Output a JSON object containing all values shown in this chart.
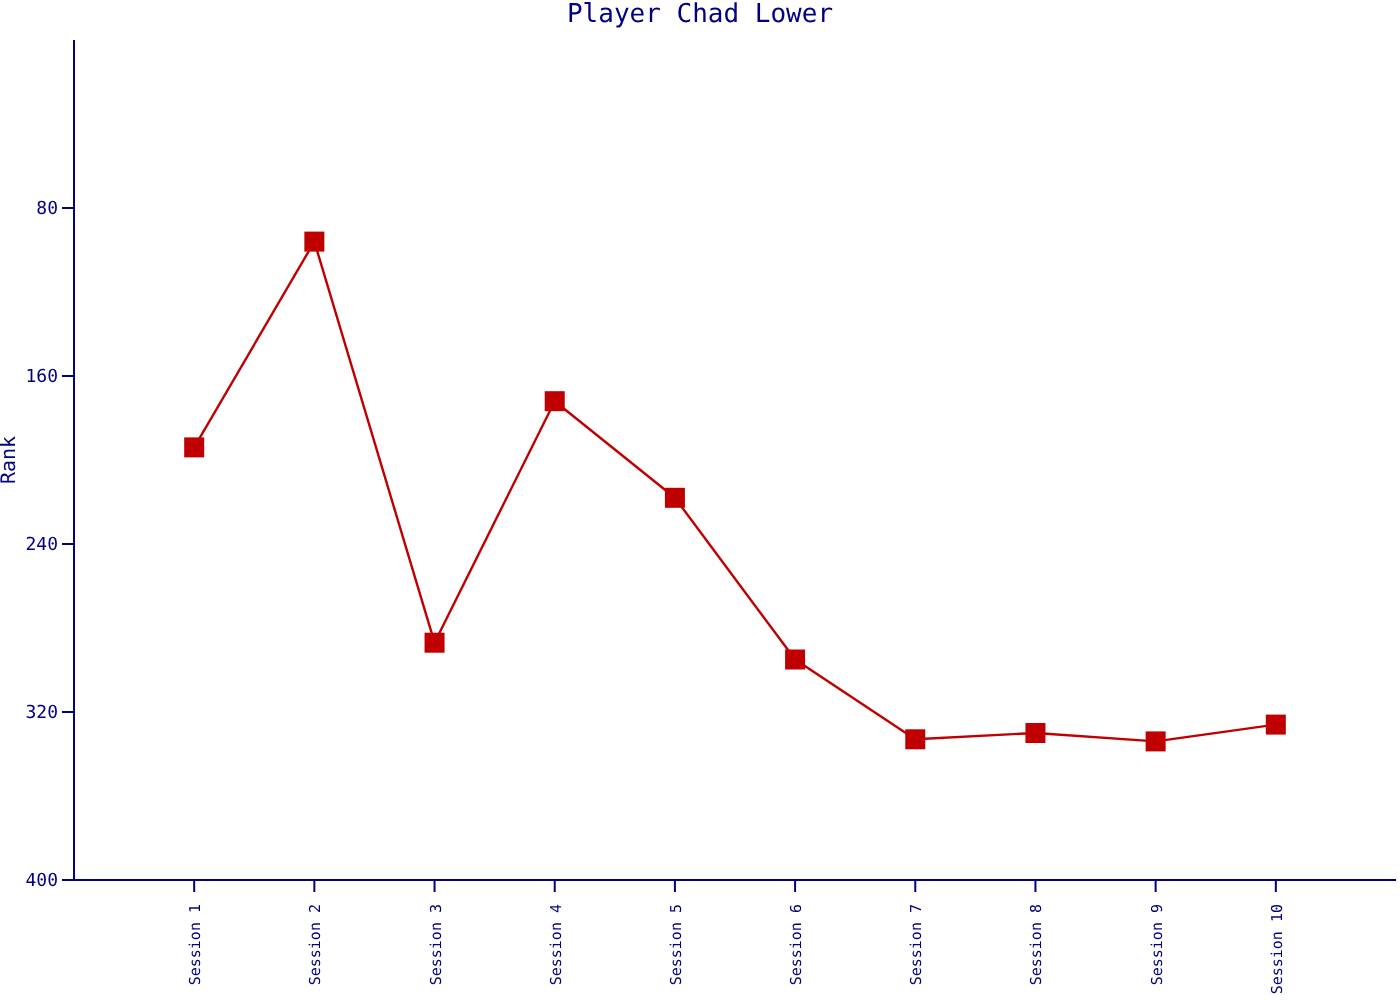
{
  "chart_data": {
    "type": "line",
    "title": "Player Chad Lower",
    "ylabel": "Rank",
    "categories": [
      "Session 1",
      "Session 2",
      "Session 3",
      "Session 4",
      "Session 5",
      "Session 6",
      "Session 7",
      "Session 8",
      "Session 9",
      "Session 10"
    ],
    "series": [
      {
        "color": "#c00000",
        "values": [
          194,
          96,
          287,
          172,
          218,
          295,
          333,
          330,
          334,
          326
        ]
      }
    ],
    "ylim": [
      400,
      0
    ],
    "yticks": [
      80,
      160,
      240,
      320,
      400
    ],
    "grid": false,
    "legend": false,
    "marker": "square",
    "line_style": "solid"
  }
}
